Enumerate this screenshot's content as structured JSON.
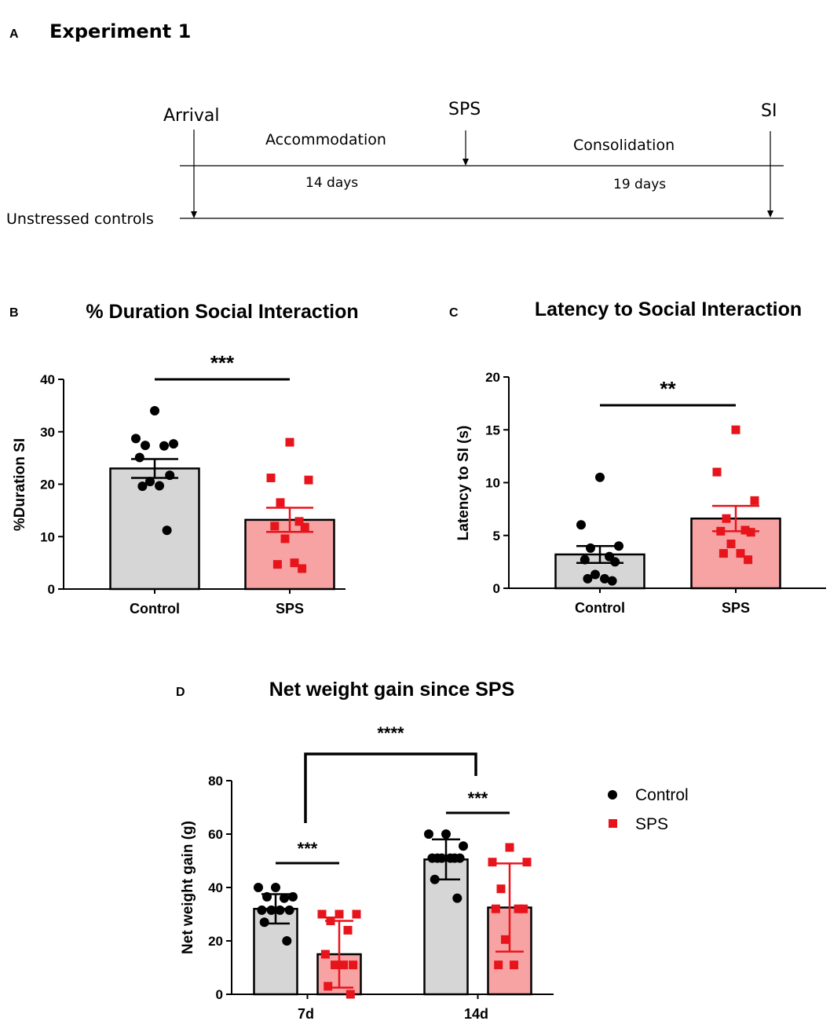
{
  "colors": {
    "control_dot": "#000000",
    "sps_marker": "#e8141c",
    "control_bar": "#d6d6d6",
    "sps_bar": "#f7a3a4",
    "sps_errorbar": "#e8141c"
  },
  "panelA": {
    "letter": "A",
    "title": "Experiment 1",
    "arrival": "Arrival",
    "sps": "SPS",
    "si": "SI",
    "accommodation": "Accommodation",
    "consolidation": "Consolidation",
    "days1": "14 days",
    "days2": "19 days",
    "unstressed": "Unstressed controls"
  },
  "chart_data": [
    {
      "panel": "B",
      "type": "bar",
      "title": "% Duration Social Interaction",
      "ylabel": "%Duration SI",
      "xlabel": "",
      "ylim": [
        0,
        40
      ],
      "yticks": [
        0,
        10,
        20,
        30,
        40
      ],
      "categories": [
        "Control",
        "SPS"
      ],
      "means": [
        23,
        13.2
      ],
      "sem": [
        1.8,
        2.3
      ],
      "points": [
        [
          34,
          28.7,
          27.7,
          27.4,
          27.3,
          25.1,
          21.7,
          20.5,
          19.7,
          19.6,
          11.2
        ],
        [
          28,
          21.2,
          20.8,
          16.5,
          12.9,
          12,
          11.8,
          9.6,
          5,
          4.7,
          3.9
        ]
      ],
      "significance": [
        "***"
      ]
    },
    {
      "panel": "C",
      "type": "bar",
      "title": "Latency to Social Interaction",
      "ylabel": "Latency to SI (s)",
      "xlabel": "",
      "ylim": [
        0,
        20
      ],
      "yticks": [
        0,
        5,
        10,
        15,
        20
      ],
      "categories": [
        "Control",
        "SPS"
      ],
      "means": [
        3.2,
        6.6
      ],
      "sem": [
        0.8,
        1.2
      ],
      "points": [
        [
          10.5,
          6,
          4,
          3.8,
          3,
          2.7,
          2.5,
          1.3,
          0.9,
          0.9,
          0.7
        ],
        [
          15,
          11,
          8.3,
          6.6,
          5.5,
          5.4,
          5.3,
          4.2,
          3.3,
          3.3,
          2.7
        ]
      ],
      "significance": [
        "**"
      ]
    },
    {
      "panel": "D",
      "type": "bar",
      "title": "Net weight gain since SPS",
      "ylabel": "Net weight gain (g)",
      "xlabel": "",
      "ylim": [
        0,
        80
      ],
      "yticks": [
        0,
        20,
        40,
        60,
        80
      ],
      "categories": [
        "7d",
        "14d"
      ],
      "series": [
        {
          "name": "Control",
          "means": [
            32,
            50.5
          ],
          "sd": [
            5.5,
            7.5
          ],
          "points": [
            [
              40,
              40,
              36.5,
              36.5,
              36,
              31.5,
              31.5,
              31.5,
              31.5,
              27,
              20
            ],
            [
              60,
              60,
              55.5,
              51,
              51,
              51,
              51,
              51,
              51,
              43,
              36
            ]
          ]
        },
        {
          "name": "SPS",
          "means": [
            15,
            32.5
          ],
          "sd": [
            12.5,
            16.5
          ],
          "points": [
            [
              30,
              30,
              30,
              27.5,
              24,
              15,
              11,
              11,
              11,
              3,
              0
            ],
            [
              55,
              49.5,
              49.5,
              39.5,
              32,
              32,
              32,
              20.5,
              11,
              11
            ]
          ]
        }
      ],
      "significance": [
        "***",
        "***",
        "****"
      ],
      "legend": [
        "Control",
        "SPS"
      ]
    }
  ]
}
